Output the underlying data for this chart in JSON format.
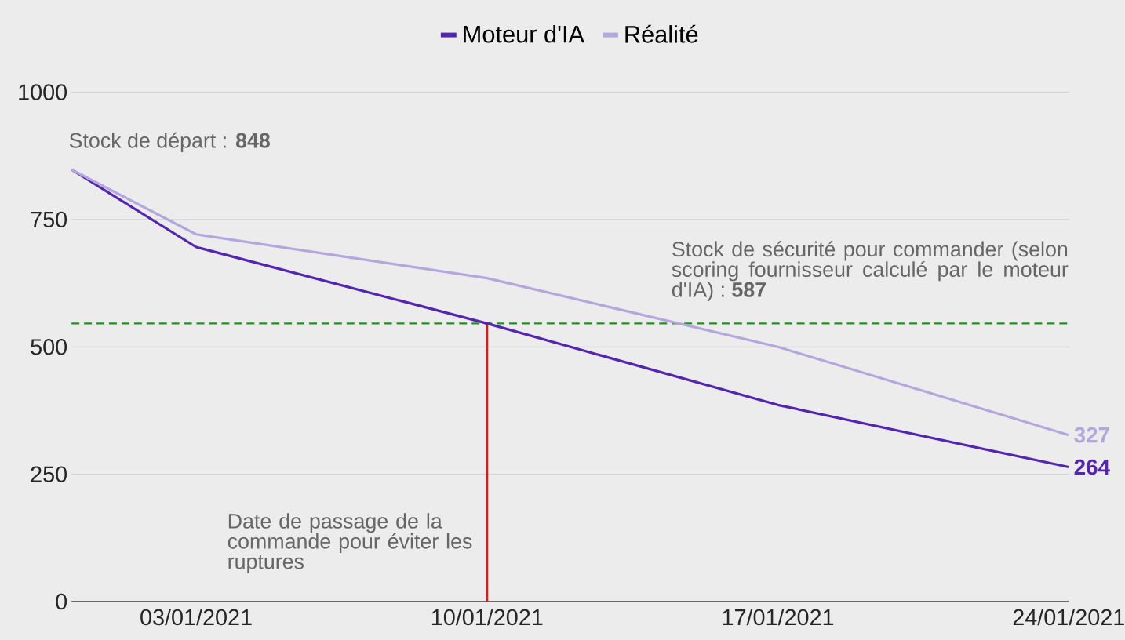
{
  "chart_data": {
    "type": "line",
    "x": [
      "2020-12-31",
      "2021-01-03",
      "2021-01-10",
      "2021-01-17",
      "2021-01-24"
    ],
    "series": [
      {
        "name": "Moteur d'IA",
        "color": "#5426b0",
        "values": [
          848,
          696,
          546,
          386,
          264
        ],
        "value_labels": [
          null,
          null,
          null,
          null,
          "264"
        ]
      },
      {
        "name": "Réalité",
        "color": "#b4a7dd",
        "values": [
          848,
          721,
          635,
          500,
          327
        ],
        "value_labels": [
          null,
          null,
          null,
          null,
          "327"
        ]
      }
    ],
    "xlim": [
      "2020-12-31",
      "2021-01-24"
    ],
    "xticks": [
      {
        "value": "2021-01-03",
        "label": "03/01/2021"
      },
      {
        "value": "2021-01-10",
        "label": "10/01/2021"
      },
      {
        "value": "2021-01-17",
        "label": "17/01/2021"
      },
      {
        "value": "2021-01-24",
        "label": "24/01/2021"
      }
    ],
    "ylim": [
      0,
      1000
    ],
    "yticks": [
      0,
      250,
      500,
      750,
      1000
    ],
    "grid": "y",
    "legend": "top",
    "marker": "none",
    "line_style": "solid",
    "ref_lines": [
      {
        "axis": "y",
        "value": 546,
        "label": "Stock de sécurité pour commander (selon scoring fournisseur calculé par le moteur d'IA) : **587**",
        "color": "#1a961a",
        "line_style": "dashed"
      },
      {
        "axis": "x",
        "value": "2021-01-10",
        "label": "Date de passage de la commande pour éviter les ruptures",
        "color": "#d01f1f",
        "line_style": "solid"
      }
    ],
    "annotations": [
      {
        "text": "Stock de départ : **848**",
        "x": "2020-12-31",
        "y": 848
      }
    ]
  }
}
